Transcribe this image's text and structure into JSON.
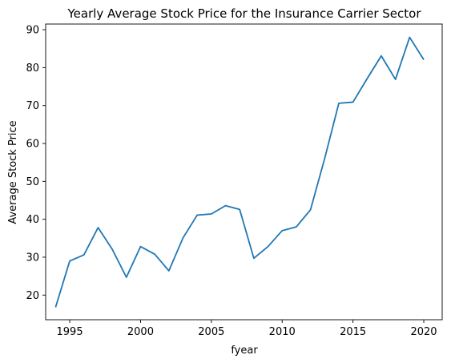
{
  "chart_data": {
    "type": "line",
    "title": "Yearly Average Stock Price for the Insurance Carrier Sector",
    "xlabel": "fyear",
    "ylabel": "Average Stock Price",
    "xlim": [
      1993.3,
      2021.3
    ],
    "ylim": [
      13.5,
      91.5
    ],
    "xticks": [
      1995,
      2000,
      2005,
      2010,
      2015,
      2020
    ],
    "yticks": [
      20,
      30,
      40,
      50,
      60,
      70,
      80,
      90
    ],
    "grid": false,
    "line_color": "#1f77b4",
    "series": [
      {
        "x": [
          1994,
          1995,
          1996,
          1997,
          1998,
          1999,
          2000,
          2001,
          2002,
          2003,
          2004,
          2005,
          2006,
          2007,
          2008,
          2009,
          2010,
          2011,
          2012,
          2013,
          2014,
          2015,
          2016,
          2017,
          2018,
          2019,
          2020
        ],
        "values": [
          16.8,
          29.0,
          30.6,
          37.8,
          32.1,
          24.7,
          32.8,
          30.8,
          26.4,
          35.1,
          41.1,
          41.4,
          43.6,
          42.6,
          29.7,
          32.8,
          37.0,
          38.0,
          42.5,
          56.0,
          70.6,
          70.9,
          77.1,
          83.1,
          76.9,
          88.0,
          82.1
        ]
      }
    ]
  }
}
